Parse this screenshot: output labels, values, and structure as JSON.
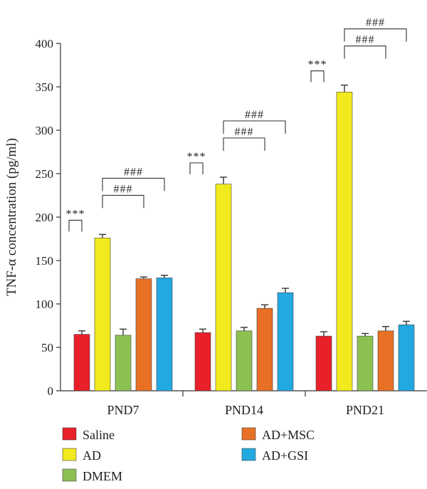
{
  "chart_data": {
    "type": "bar",
    "categories": [
      "PND7",
      "PND14",
      "PND21"
    ],
    "series": [
      {
        "name": "Saline",
        "color": "#e8202a",
        "values": [
          65,
          67,
          63
        ],
        "errors": [
          4,
          4,
          5
        ]
      },
      {
        "name": "AD",
        "color": "#f2ea1c",
        "values": [
          176,
          238,
          344
        ],
        "errors": [
          4,
          8,
          8
        ]
      },
      {
        "name": "DMEM",
        "color": "#8cc152",
        "values": [
          64,
          69,
          63
        ],
        "errors": [
          7,
          4,
          3
        ]
      },
      {
        "name": "AD+MSC",
        "color": "#e87024",
        "values": [
          129,
          95,
          69
        ],
        "errors": [
          2,
          4,
          5
        ]
      },
      {
        "name": "AD+GSI",
        "color": "#22a9e1",
        "values": [
          130,
          113,
          76
        ],
        "errors": [
          3,
          5,
          4
        ]
      }
    ],
    "xlabel": "",
    "ylabel": "TNF-α concentration (pg/ml)",
    "ylim": [
      0,
      400
    ],
    "yticks": [
      0,
      50,
      100,
      150,
      200,
      250,
      300,
      350,
      400
    ],
    "grid": false,
    "legend_position": "bottom",
    "significance": [
      {
        "group": 0,
        "from": 0,
        "to": 1,
        "label": "***"
      },
      {
        "group": 0,
        "from": 1,
        "to": 3,
        "label": "###"
      },
      {
        "group": 0,
        "from": 1,
        "to": 4,
        "label": "###"
      },
      {
        "group": 1,
        "from": 0,
        "to": 1,
        "label": "***"
      },
      {
        "group": 1,
        "from": 1,
        "to": 3,
        "label": "###"
      },
      {
        "group": 1,
        "from": 1,
        "to": 4,
        "label": "###"
      },
      {
        "group": 2,
        "from": 0,
        "to": 1,
        "label": "***"
      },
      {
        "group": 2,
        "from": 1,
        "to": 3,
        "label": "###"
      },
      {
        "group": 2,
        "from": 1,
        "to": 4,
        "label": "###"
      }
    ]
  }
}
